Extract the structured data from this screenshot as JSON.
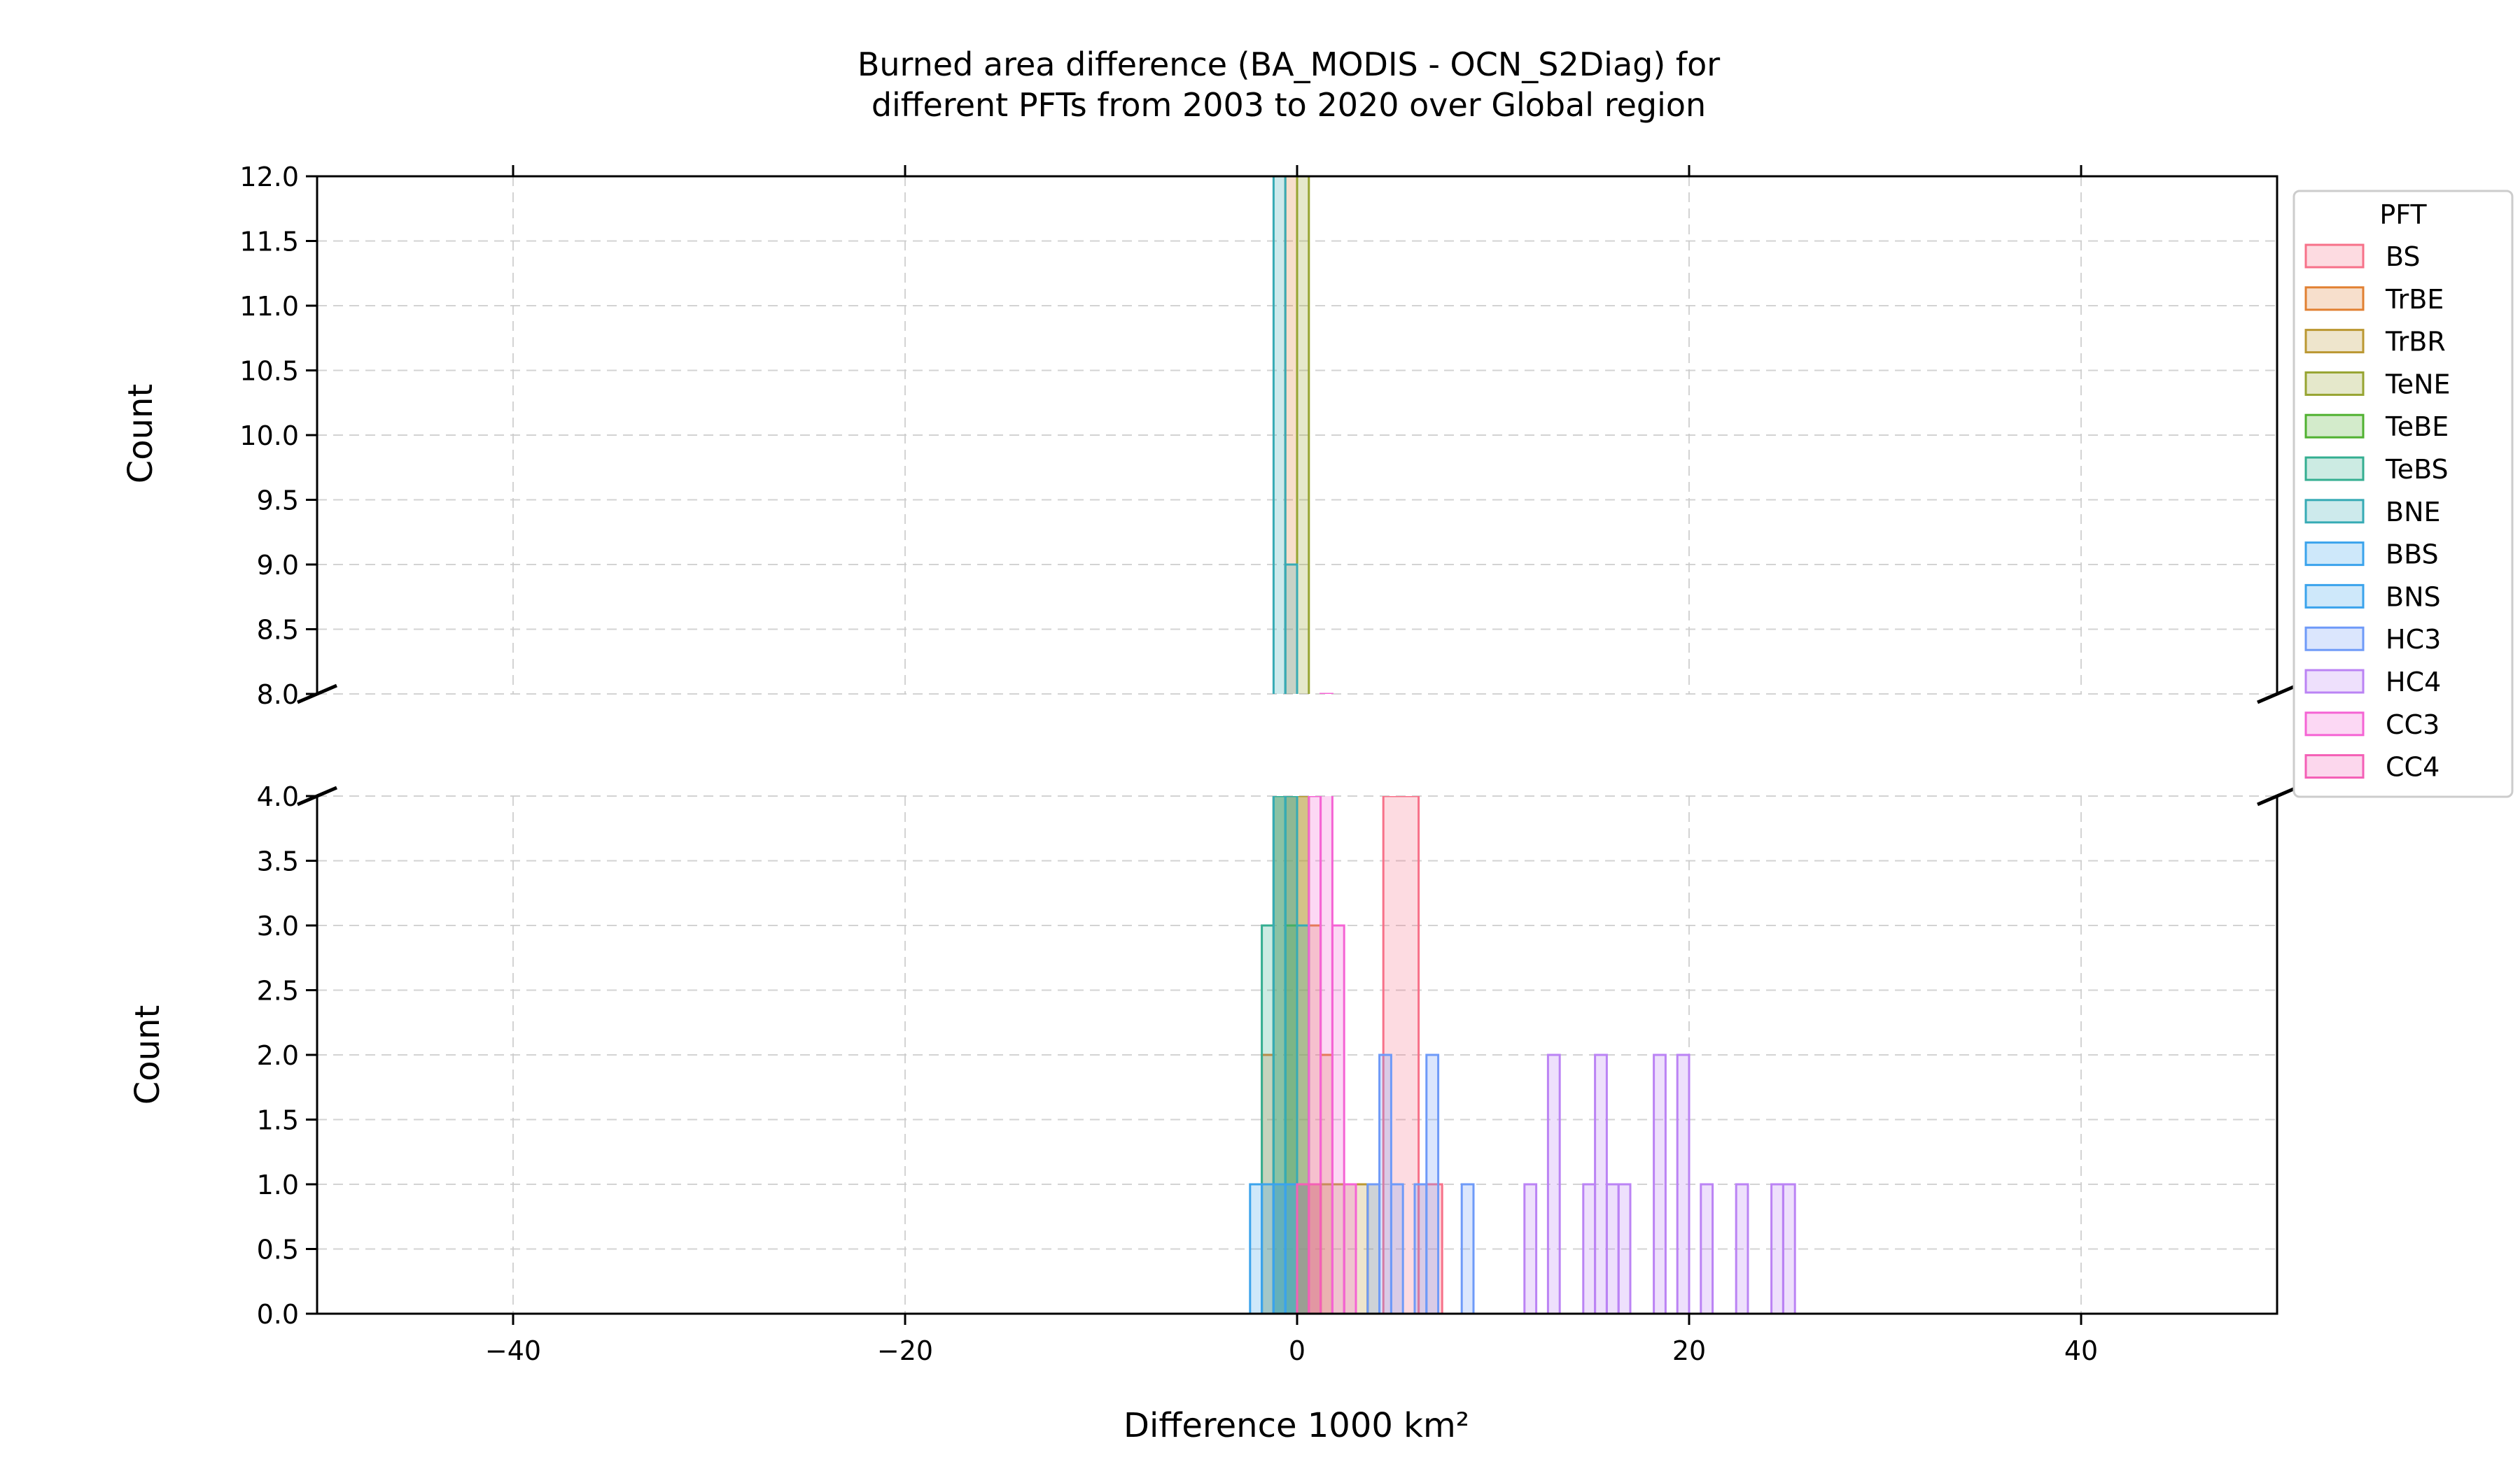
{
  "chart_data": {
    "type": "histogram",
    "title_line1": "Burned area difference (BA_MODIS - OCN_S2Diag) for",
    "title_line2": "different PFTs from 2003 to 2020 over Global region",
    "xlabel": "Difference 1000 km²",
    "ylabel": "Count",
    "xlim": [
      -50,
      50
    ],
    "xticks": [
      -40,
      -20,
      0,
      20,
      40
    ],
    "xtick_labels": [
      "−40",
      "−20",
      "0",
      "20",
      "40"
    ],
    "axis_break": true,
    "upper_ylim": [
      8.0,
      12.0
    ],
    "upper_yticks": [
      "8.0",
      "8.5",
      "9.0",
      "9.5",
      "10.0",
      "10.5",
      "11.0",
      "11.5",
      "12.0"
    ],
    "lower_ylim": [
      0.0,
      4.0
    ],
    "lower_yticks": [
      "0.0",
      "0.5",
      "1.0",
      "1.5",
      "2.0",
      "2.5",
      "3.0",
      "3.5",
      "4.0"
    ],
    "grid": true,
    "legend": {
      "title": "PFT",
      "placement": "outside-right-top"
    },
    "series": [
      {
        "name": "BS",
        "color": "#f77189",
        "bins": [
          [
            4.4,
            6.2,
            4
          ],
          [
            6.2,
            7.4,
            1
          ]
        ]
      },
      {
        "name": "TrBE",
        "color": "#e18032",
        "bins": [
          [
            -1.8,
            -1.2,
            2
          ],
          [
            -1.2,
            -0.6,
            4
          ],
          [
            -0.6,
            0.0,
            12
          ],
          [
            0.0,
            0.6,
            4
          ],
          [
            0.6,
            1.2,
            3
          ],
          [
            1.2,
            1.8,
            2
          ]
        ]
      },
      {
        "name": "TrBR",
        "color": "#bb9832",
        "bins": [
          [
            -1.2,
            -0.6,
            1
          ],
          [
            -0.6,
            0.0,
            4
          ],
          [
            0.0,
            0.6,
            4
          ],
          [
            0.6,
            1.2,
            1
          ],
          [
            1.2,
            1.8,
            1
          ],
          [
            1.8,
            2.4,
            1
          ],
          [
            2.4,
            3.0,
            1
          ],
          [
            3.0,
            3.6,
            1
          ],
          [
            3.6,
            4.2,
            1
          ]
        ]
      },
      {
        "name": "TeNE",
        "color": "#97a431",
        "bins": [
          [
            -0.6,
            0.0,
            4
          ],
          [
            0.0,
            0.6,
            12
          ],
          [
            0.6,
            1.2,
            1
          ]
        ]
      },
      {
        "name": "TeBE",
        "color": "#50b131",
        "bins": [
          [
            -1.2,
            -0.6,
            4
          ],
          [
            -0.6,
            0.0,
            3
          ],
          [
            0.0,
            0.6,
            1
          ]
        ]
      },
      {
        "name": "TeBS",
        "color": "#34ae91",
        "bins": [
          [
            -1.8,
            -1.2,
            3
          ],
          [
            -1.2,
            -0.6,
            4
          ],
          [
            -0.6,
            0.0,
            4
          ],
          [
            0.0,
            0.6,
            1
          ]
        ]
      },
      {
        "name": "BNE",
        "color": "#37abb5",
        "bins": [
          [
            -1.2,
            -0.6,
            12
          ],
          [
            -0.6,
            0.0,
            9
          ],
          [
            0.0,
            0.6,
            3
          ]
        ]
      },
      {
        "name": "BBS",
        "color": "#3ba3ec",
        "bins": [
          [
            -2.4,
            -1.8,
            1
          ],
          [
            -1.8,
            -1.2,
            1
          ],
          [
            -1.2,
            -0.6,
            1
          ],
          [
            -0.6,
            0.0,
            1
          ]
        ]
      },
      {
        "name": "BNS",
        "color": "#3ba3ec",
        "bins": [
          [
            -1.2,
            -0.6,
            1
          ],
          [
            -0.6,
            0.0,
            1
          ]
        ]
      },
      {
        "name": "HC3",
        "color": "#6e9af8",
        "bins": [
          [
            3.6,
            4.2,
            1
          ],
          [
            4.2,
            4.8,
            2
          ],
          [
            4.8,
            5.4,
            1
          ],
          [
            6.0,
            6.6,
            1
          ],
          [
            6.6,
            7.2,
            2
          ],
          [
            8.4,
            9.0,
            1
          ]
        ]
      },
      {
        "name": "HC4",
        "color": "#bb83f4",
        "bins": [
          [
            11.6,
            12.2,
            1
          ],
          [
            12.8,
            13.4,
            2
          ],
          [
            14.6,
            15.2,
            1
          ],
          [
            15.2,
            15.8,
            2
          ],
          [
            15.8,
            16.4,
            1
          ],
          [
            16.4,
            17.0,
            1
          ],
          [
            18.2,
            18.8,
            2
          ],
          [
            19.4,
            20.0,
            2
          ],
          [
            20.6,
            21.2,
            1
          ],
          [
            22.4,
            23.0,
            1
          ],
          [
            24.2,
            24.8,
            1
          ],
          [
            24.8,
            25.4,
            1
          ]
        ]
      },
      {
        "name": "CC3",
        "color": "#f564d4",
        "bins": [
          [
            0.6,
            1.2,
            4
          ],
          [
            1.2,
            1.8,
            8
          ],
          [
            1.8,
            2.4,
            3
          ],
          [
            2.4,
            3.0,
            1
          ]
        ]
      },
      {
        "name": "CC4",
        "color": "#f45fb6",
        "bins": [
          [
            0.0,
            0.6,
            1
          ],
          [
            0.6,
            1.2,
            1
          ]
        ]
      }
    ]
  }
}
